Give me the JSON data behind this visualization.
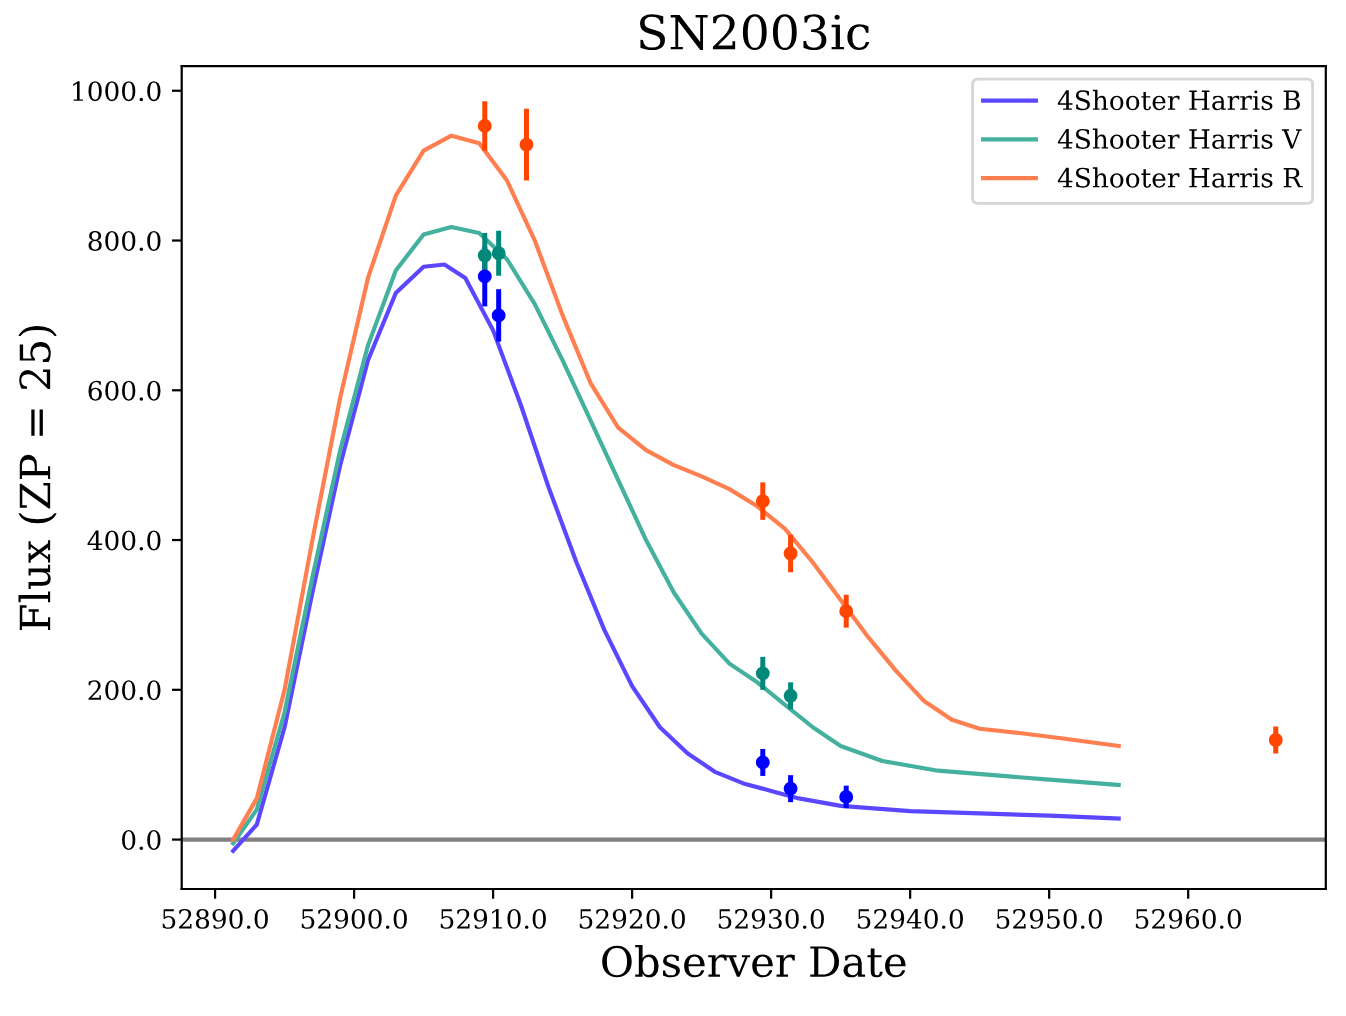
{
  "chart_data": {
    "type": "line",
    "title": "SN2003ic",
    "xlabel": "Observer Date",
    "ylabel": "Flux (ZP = 25)",
    "xlim": [
      52887.6,
      52969.9
    ],
    "ylim": [
      -66,
      1033
    ],
    "xticks": [
      {
        "value": 52890,
        "label": "52890.0"
      },
      {
        "value": 52900,
        "label": "52900.0"
      },
      {
        "value": 52910,
        "label": "52910.0"
      },
      {
        "value": 52920,
        "label": "52920.0"
      },
      {
        "value": 52930,
        "label": "52930.0"
      },
      {
        "value": 52940,
        "label": "52940.0"
      },
      {
        "value": 52950,
        "label": "52950.0"
      },
      {
        "value": 52960,
        "label": "52960.0"
      }
    ],
    "yticks": [
      {
        "value": 0,
        "label": "0.0"
      },
      {
        "value": 200,
        "label": "200.0"
      },
      {
        "value": 400,
        "label": "400.0"
      },
      {
        "value": 600,
        "label": "600.0"
      },
      {
        "value": 800,
        "label": "800.0"
      },
      {
        "value": 1000,
        "label": "1000.0"
      }
    ],
    "grid": false,
    "legend": "top right",
    "ref_lines": [
      {
        "axis": "y",
        "value": 0,
        "color": "#808080"
      }
    ],
    "series": [
      {
        "name": "4Shooter Harris B",
        "color": "#5b47ff",
        "x": [
          52891.3,
          52893,
          52895,
          52897,
          52899,
          52901,
          52903,
          52905,
          52906.5,
          52908,
          52910,
          52912,
          52914,
          52916,
          52918,
          52920,
          52922,
          52924,
          52926,
          52928,
          52930,
          52932,
          52935,
          52940,
          52945,
          52950,
          52955
        ],
        "values": [
          -15,
          20,
          150,
          330,
          500,
          640,
          730,
          765,
          768,
          750,
          680,
          580,
          470,
          370,
          280,
          205,
          150,
          115,
          90,
          75,
          65,
          55,
          45,
          38,
          35,
          32,
          28
        ]
      },
      {
        "name": "4Shooter Harris V",
        "color": "#44b09e",
        "x": [
          52891.3,
          52893,
          52895,
          52897,
          52899,
          52901,
          52903,
          52905,
          52907,
          52909,
          52911,
          52913,
          52915,
          52917,
          52919,
          52921,
          52923,
          52925,
          52927,
          52929,
          52931,
          52933,
          52935,
          52938,
          52942,
          52946,
          52950,
          52955
        ],
        "values": [
          -5,
          40,
          170,
          350,
          520,
          660,
          760,
          808,
          818,
          810,
          775,
          715,
          640,
          560,
          480,
          400,
          330,
          275,
          235,
          210,
          180,
          150,
          125,
          105,
          92,
          86,
          80,
          73
        ]
      },
      {
        "name": "4Shooter Harris R",
        "color": "#ff7f50",
        "x": [
          52891.3,
          52893,
          52895,
          52897,
          52899,
          52901,
          52903,
          52905,
          52907,
          52909,
          52911,
          52913,
          52915,
          52917,
          52919,
          52921,
          52923,
          52925,
          52927,
          52929,
          52931,
          52933,
          52935,
          52937,
          52939,
          52941,
          52943,
          52945,
          52948,
          52951,
          52955
        ],
        "values": [
          0,
          55,
          200,
          400,
          590,
          750,
          860,
          920,
          940,
          930,
          880,
          800,
          700,
          610,
          550,
          520,
          500,
          485,
          468,
          445,
          415,
          370,
          320,
          270,
          225,
          185,
          160,
          148,
          142,
          135,
          125
        ]
      },
      {
        "type": "scatter",
        "marker": "circle",
        "color": "#0000ff",
        "x": [
          52909.4,
          52910.4,
          52929.4,
          52931.4,
          52935.4
        ],
        "values": [
          752,
          700,
          103,
          68,
          57
        ],
        "errors": [
          40,
          35,
          18,
          18,
          15
        ]
      },
      {
        "type": "scatter",
        "marker": "circle",
        "color": "#00897b",
        "x": [
          52909.4,
          52910.4,
          52929.4,
          52931.4
        ],
        "values": [
          780,
          783,
          222,
          192
        ],
        "errors": [
          30,
          30,
          22,
          18
        ]
      },
      {
        "type": "scatter",
        "marker": "circle",
        "color": "#ff4500",
        "x": [
          52909.4,
          52912.4,
          52929.4,
          52931.4,
          52935.4,
          52966.3
        ],
        "values": [
          953,
          928,
          452,
          382,
          305,
          133
        ],
        "errors": [
          33,
          48,
          25,
          25,
          22,
          18
        ]
      }
    ]
  }
}
